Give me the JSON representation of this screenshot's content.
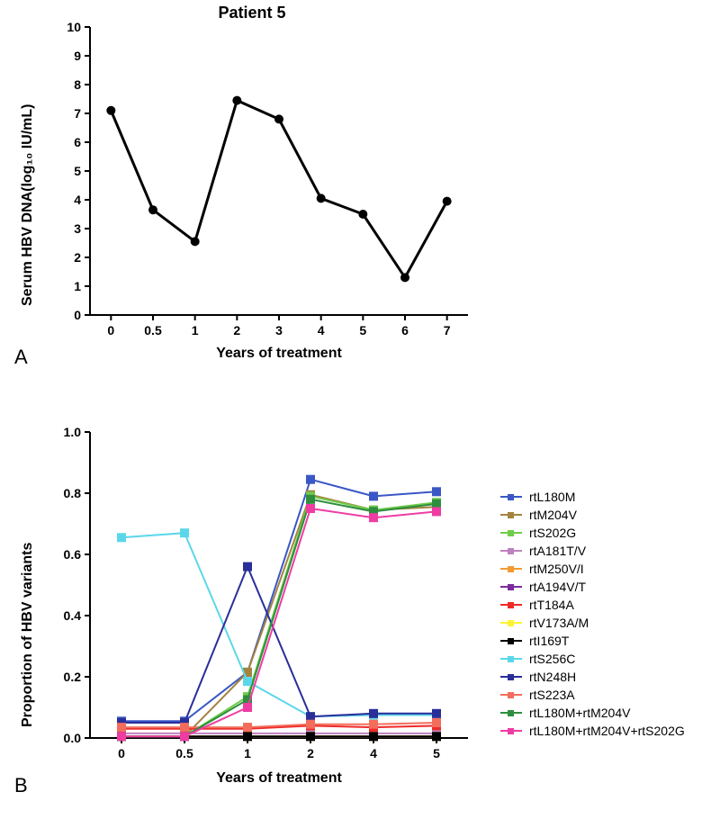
{
  "title": "Patient 5",
  "panelA": {
    "letter": "A",
    "y_label": "Serum HBV DNA(log₁₀ IU/mL)",
    "x_label": "Years of treatment",
    "x_ticks": [
      0,
      0.5,
      1,
      2,
      3,
      4,
      5,
      6,
      7
    ],
    "y_lim": [
      0,
      10
    ],
    "y_tick_step": 1,
    "series": {
      "color": "#000000",
      "line_width": 3,
      "marker": "circle",
      "marker_size": 5,
      "x": [
        0,
        0.5,
        1,
        2,
        3,
        4,
        5,
        6,
        7
      ],
      "y": [
        7.1,
        3.65,
        2.55,
        7.45,
        6.8,
        4.05,
        3.5,
        1.3,
        3.95
      ]
    },
    "title_fontsize": 18,
    "label_fontsize": 16
  },
  "panelB": {
    "letter": "B",
    "y_label": "Proportion of HBV variants",
    "x_label": "Years of treatment",
    "x_ticks": [
      0,
      0.5,
      1,
      2,
      4,
      5
    ],
    "y_lim": [
      0.0,
      1.0
    ],
    "y_tick_step": 0.2,
    "title_fontsize": 18,
    "label_fontsize": 16,
    "marker": "square",
    "marker_size": 5,
    "line_width": 2,
    "series": [
      {
        "name": "rtL180M",
        "color": "#3a57c5",
        "x": [
          0,
          0.5,
          1,
          2,
          4,
          5
        ],
        "y": [
          0.055,
          0.055,
          0.215,
          0.845,
          0.79,
          0.805
        ]
      },
      {
        "name": "rtM204V",
        "color": "#a4833e",
        "x": [
          0,
          0.5,
          1,
          2,
          4,
          5
        ],
        "y": [
          0.005,
          0.005,
          0.215,
          0.795,
          0.745,
          0.755
        ]
      },
      {
        "name": "rtS202G",
        "color": "#6fcc4a",
        "x": [
          0,
          0.5,
          1,
          2,
          4,
          5
        ],
        "y": [
          0.005,
          0.005,
          0.135,
          0.79,
          0.745,
          0.77
        ]
      },
      {
        "name": "rtA181T/V",
        "color": "#be81c0",
        "x": [
          0,
          0.5,
          1,
          2,
          4,
          5
        ],
        "y": [
          0.015,
          0.015,
          0.015,
          0.015,
          0.015,
          0.015
        ]
      },
      {
        "name": "rtM250V/I",
        "color": "#f29b34",
        "x": [
          0,
          0.5,
          1,
          2,
          4,
          5
        ],
        "y": [
          0.005,
          0.005,
          0.005,
          0.005,
          0.005,
          0.005
        ]
      },
      {
        "name": "rtA194V/T",
        "color": "#7c2c9e",
        "x": [
          0,
          0.5,
          1,
          2,
          4,
          5
        ],
        "y": [
          0.005,
          0.005,
          0.005,
          0.005,
          0.005,
          0.005
        ]
      },
      {
        "name": "rtT184A",
        "color": "#ed2a29",
        "x": [
          0,
          0.5,
          1,
          2,
          4,
          5
        ],
        "y": [
          0.03,
          0.03,
          0.03,
          0.04,
          0.035,
          0.04
        ]
      },
      {
        "name": "rtV173A/M",
        "color": "#fef235",
        "x": [
          0,
          0.5,
          1,
          2,
          4,
          5
        ],
        "y": [
          0.005,
          0.005,
          0.005,
          0.005,
          0.005,
          0.005
        ]
      },
      {
        "name": "rtI169T",
        "color": "#000000",
        "x": [
          0,
          0.5,
          1,
          2,
          4,
          5
        ],
        "y": [
          0.005,
          0.005,
          0.005,
          0.005,
          0.005,
          0.005
        ]
      },
      {
        "name": "rtS256C",
        "color": "#5bd7ea",
        "x": [
          0,
          0.5,
          1,
          2,
          4,
          5
        ],
        "y": [
          0.655,
          0.67,
          0.185,
          0.07,
          0.075,
          0.075
        ]
      },
      {
        "name": "rtN248H",
        "color": "#2a2e99",
        "x": [
          0,
          0.5,
          1,
          2,
          4,
          5
        ],
        "y": [
          0.05,
          0.05,
          0.56,
          0.07,
          0.08,
          0.08
        ]
      },
      {
        "name": "rtS223A",
        "color": "#f36d5c",
        "x": [
          0,
          0.5,
          1,
          2,
          4,
          5
        ],
        "y": [
          0.035,
          0.035,
          0.035,
          0.045,
          0.045,
          0.05
        ]
      },
      {
        "name": "rtL180M+rtM204V",
        "color": "#2e8e3e",
        "x": [
          0,
          0.5,
          1,
          2,
          4,
          5
        ],
        "y": [
          0.005,
          0.005,
          0.125,
          0.78,
          0.74,
          0.765
        ]
      },
      {
        "name": "rtL180M+rtM204V+rtS202G",
        "color": "#ef3ca3",
        "x": [
          0,
          0.5,
          1,
          2,
          4,
          5
        ],
        "y": [
          0.005,
          0.005,
          0.1,
          0.75,
          0.72,
          0.74
        ]
      }
    ]
  }
}
